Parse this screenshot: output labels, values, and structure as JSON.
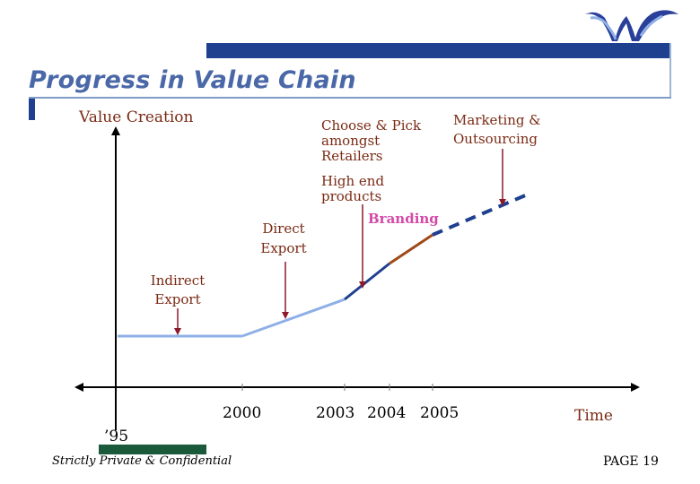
{
  "slide": {
    "title": "Progress in Value Chain",
    "footer_note": "Strictly Private & Confidential",
    "page_label": "PAGE 19"
  },
  "colors": {
    "brand_bar": "#1f3f8f",
    "title": "#4a68a8",
    "label": "#7a2a14",
    "arrow": "#8b1a2a",
    "segment_flat": "#8fb0e6",
    "segment_slope": "#8fb0e6",
    "segment_navy": "#1f3f8f",
    "segment_brown": "#a04a1a",
    "segment_dashed": "#1f3f8f",
    "branding_text": "#d34aa8",
    "footer_bar": "#1a5a3a"
  },
  "axes": {
    "y_label": "Value Creation",
    "x_label": "Time",
    "ticks": [
      "’95",
      "2000",
      "2003",
      "2004",
      "2005"
    ]
  },
  "stages": [
    {
      "id": "indirect-export",
      "lines": [
        "Indirect",
        "Export"
      ]
    },
    {
      "id": "direct-export",
      "lines": [
        "Direct",
        "Export"
      ]
    },
    {
      "id": "choose-pick",
      "lines": [
        "Choose & Pick",
        "amongst",
        "Retailers"
      ]
    },
    {
      "id": "high-end",
      "lines": [
        "High end",
        "products"
      ]
    },
    {
      "id": "branding",
      "lines": [
        "Branding"
      ]
    },
    {
      "id": "marketing",
      "lines": [
        "Marketing &",
        "Outsourcing"
      ]
    }
  ],
  "logo": {
    "icon": "wave-logo-icon"
  }
}
